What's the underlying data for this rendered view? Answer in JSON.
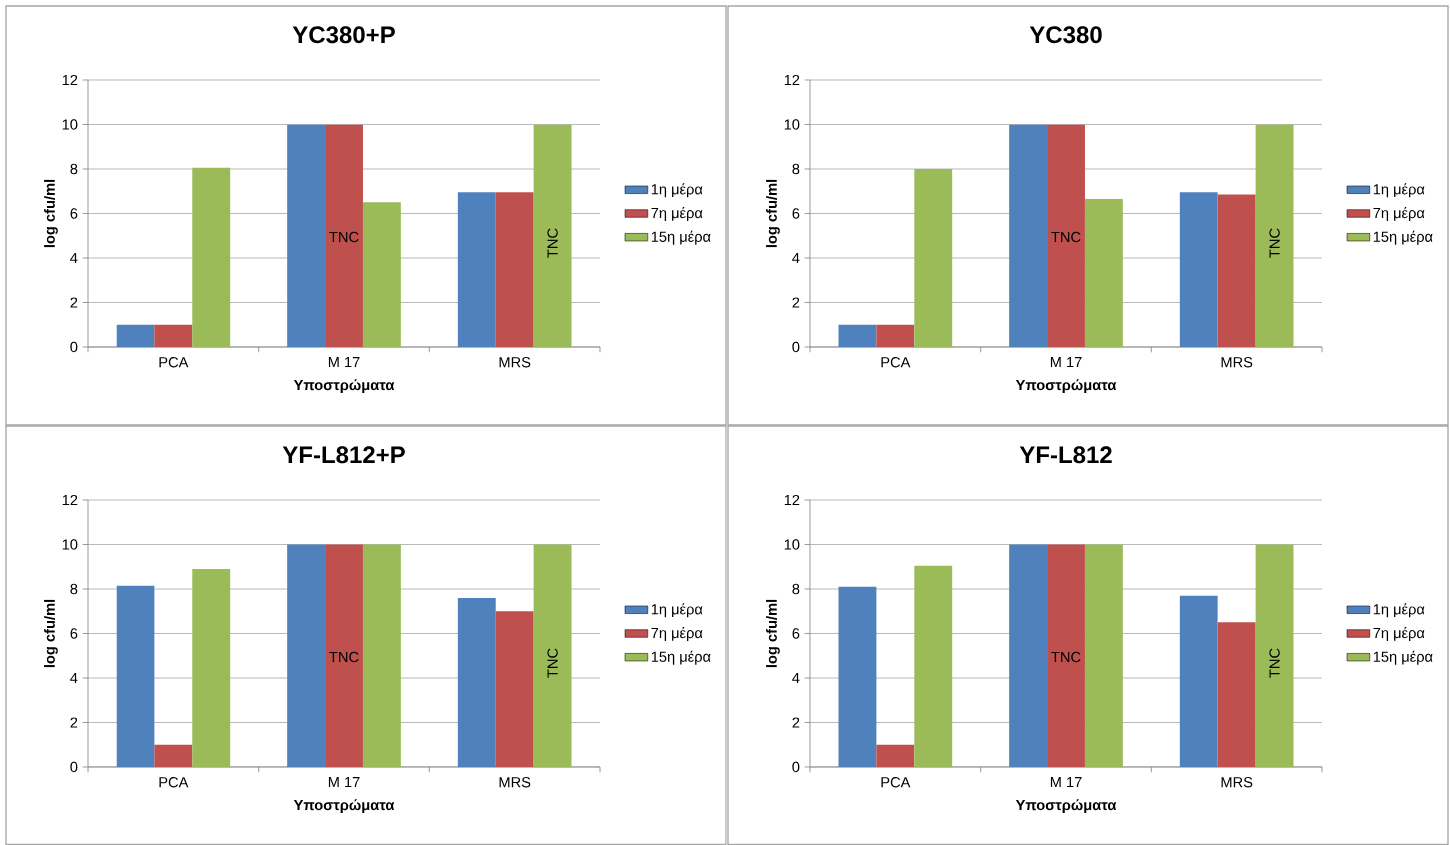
{
  "chart_data": [
    {
      "type": "bar",
      "title": "YC380+P",
      "xlabel": "Υποστρώματα",
      "ylabel": "log cfu/ml",
      "categories": [
        "PCA",
        "M 17",
        "MRS"
      ],
      "series": [
        {
          "name": "1η μέρα",
          "color": "#4f81bd",
          "values": [
            1,
            10,
            6.95
          ]
        },
        {
          "name": "7η μέρα",
          "color": "#c0504d",
          "values": [
            1,
            10,
            6.95
          ]
        },
        {
          "name": "15η μέρα",
          "color": "#9bbb59",
          "values": [
            8.05,
            6.5,
            10
          ]
        }
      ],
      "ylim": [
        0,
        12
      ],
      "yticks": [
        0,
        2,
        4,
        6,
        8,
        10,
        12
      ],
      "grid": "y",
      "legend": "right",
      "annotations": [
        "TNC",
        "TNC"
      ]
    },
    {
      "type": "bar",
      "title": "YC380",
      "xlabel": "Υποστρώματα",
      "ylabel": "log cfu/ml",
      "categories": [
        "PCA",
        "M 17",
        "MRS"
      ],
      "series": [
        {
          "name": "1η μέρα",
          "color": "#4f81bd",
          "values": [
            1,
            10,
            6.95
          ]
        },
        {
          "name": "7η μέρα",
          "color": "#c0504d",
          "values": [
            1,
            10,
            6.85
          ]
        },
        {
          "name": "15η μέρα",
          "color": "#9bbb59",
          "values": [
            8,
            6.65,
            10
          ]
        }
      ],
      "ylim": [
        0,
        12
      ],
      "yticks": [
        0,
        2,
        4,
        6,
        8,
        10,
        12
      ],
      "grid": "y",
      "legend": "right",
      "annotations": [
        "TNC",
        "TNC"
      ]
    },
    {
      "type": "bar",
      "title": "YF-L812+P",
      "xlabel": "Υποστρώματα",
      "ylabel": "log cfu/ml",
      "categories": [
        "PCA",
        "M 17",
        "MRS"
      ],
      "series": [
        {
          "name": "1η μέρα",
          "color": "#4f81bd",
          "values": [
            8.15,
            10,
            7.6
          ]
        },
        {
          "name": "7η μέρα",
          "color": "#c0504d",
          "values": [
            1,
            10,
            7
          ]
        },
        {
          "name": "15η μέρα",
          "color": "#9bbb59",
          "values": [
            8.9,
            10,
            10
          ]
        }
      ],
      "ylim": [
        0,
        12
      ],
      "yticks": [
        0,
        2,
        4,
        6,
        8,
        10,
        12
      ],
      "grid": "y",
      "legend": "right",
      "annotations": [
        "TNC",
        "TNC"
      ]
    },
    {
      "type": "bar",
      "title": "YF-L812",
      "xlabel": "Υποστρώματα",
      "ylabel": "log cfu/ml",
      "categories": [
        "PCA",
        "M 17",
        "MRS"
      ],
      "series": [
        {
          "name": "1η μέρα",
          "color": "#4f81bd",
          "values": [
            8.1,
            10,
            7.7
          ]
        },
        {
          "name": "7η μέρα",
          "color": "#c0504d",
          "values": [
            1,
            10,
            6.5
          ]
        },
        {
          "name": "15η μέρα",
          "color": "#9bbb59",
          "values": [
            9.05,
            10,
            10
          ]
        }
      ],
      "ylim": [
        0,
        12
      ],
      "yticks": [
        0,
        2,
        4,
        6,
        8,
        10,
        12
      ],
      "grid": "y",
      "legend": "right",
      "annotations": [
        "TNC",
        "TNC"
      ]
    }
  ]
}
